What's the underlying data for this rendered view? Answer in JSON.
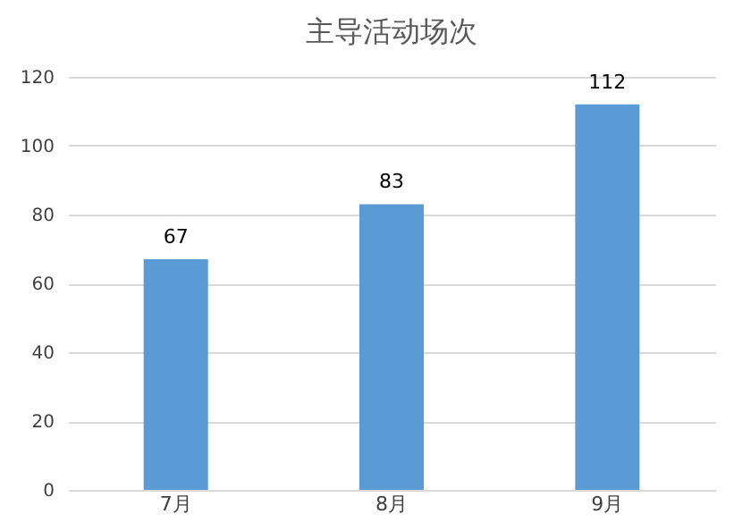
{
  "chart_data": {
    "type": "bar",
    "title": "主导活动场次",
    "categories": [
      "7月",
      "8月",
      "9月"
    ],
    "values": [
      67,
      83,
      112
    ],
    "color": "#5b9bd5",
    "ylim": [
      0,
      120
    ],
    "yticks": [
      0,
      20,
      40,
      60,
      80,
      100,
      120
    ],
    "grid": "y",
    "data_labels": true
  }
}
